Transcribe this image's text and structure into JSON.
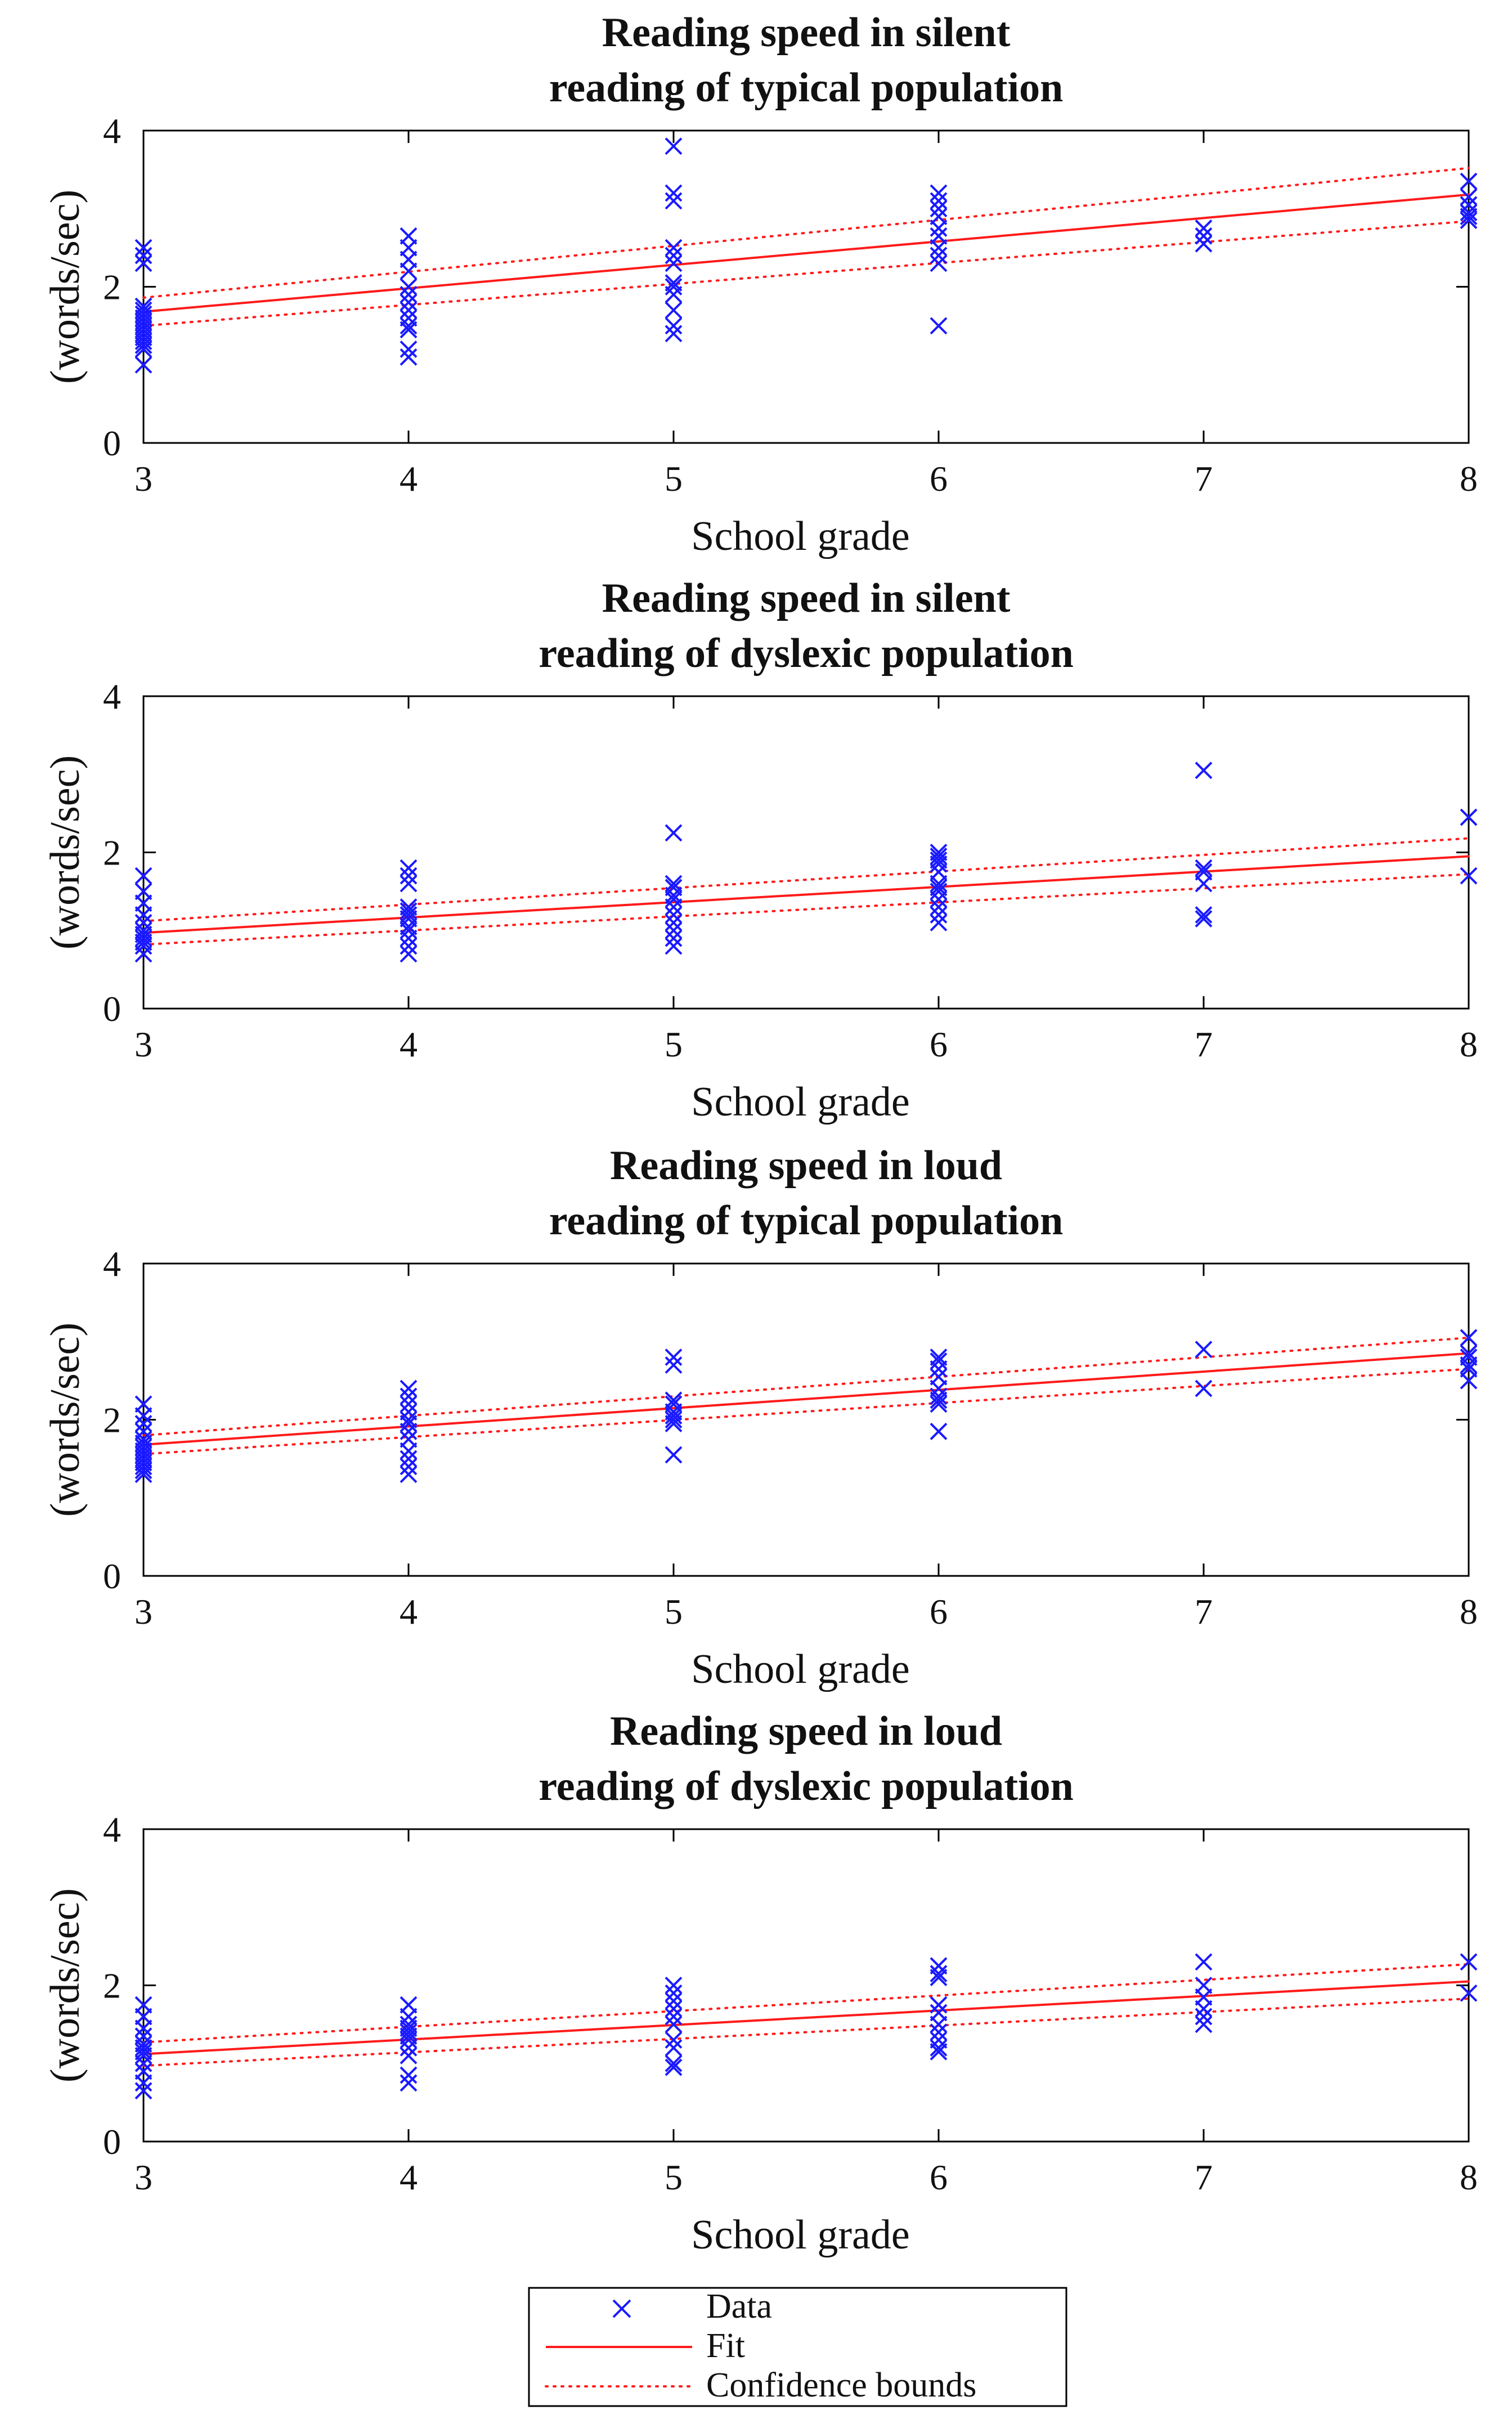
{
  "chart_data": [
    {
      "type": "scatter",
      "title_lines": [
        "Reading speed in silent",
        "reading of typical population"
      ],
      "xlabel": "School grade",
      "ylabel": "(words/sec)",
      "xlim": [
        3,
        8
      ],
      "ylim": [
        0,
        4
      ],
      "xticks": [
        3,
        4,
        5,
        6,
        7,
        8
      ],
      "yticks": [
        0,
        2,
        4
      ],
      "series": [
        {
          "name": "Data",
          "points": [
            [
              3,
              2.5
            ],
            [
              3,
              2.4
            ],
            [
              3,
              2.3
            ],
            [
              3,
              1.75
            ],
            [
              3,
              1.7
            ],
            [
              3,
              1.65
            ],
            [
              3,
              1.6
            ],
            [
              3,
              1.55
            ],
            [
              3,
              1.5
            ],
            [
              3,
              1.45
            ],
            [
              3,
              1.4
            ],
            [
              3,
              1.35
            ],
            [
              3,
              1.3
            ],
            [
              3,
              1.25
            ],
            [
              3,
              1.2
            ],
            [
              3,
              1.0
            ],
            [
              4,
              2.65
            ],
            [
              4,
              2.5
            ],
            [
              4,
              2.35
            ],
            [
              4,
              2.2
            ],
            [
              4,
              2.0
            ],
            [
              4,
              1.9
            ],
            [
              4,
              1.8
            ],
            [
              4,
              1.7
            ],
            [
              4,
              1.6
            ],
            [
              4,
              1.5
            ],
            [
              4,
              1.45
            ],
            [
              4,
              1.2
            ],
            [
              4,
              1.1
            ],
            [
              5,
              3.8
            ],
            [
              5,
              3.2
            ],
            [
              5,
              3.1
            ],
            [
              5,
              2.5
            ],
            [
              5,
              2.4
            ],
            [
              5,
              2.3
            ],
            [
              5,
              2.05
            ],
            [
              5,
              2.0
            ],
            [
              5,
              1.9
            ],
            [
              5,
              1.7
            ],
            [
              5,
              1.5
            ],
            [
              5,
              1.4
            ],
            [
              6,
              3.2
            ],
            [
              6,
              3.1
            ],
            [
              6,
              3.0
            ],
            [
              6,
              2.9
            ],
            [
              6,
              2.75
            ],
            [
              6,
              2.65
            ],
            [
              6,
              2.5
            ],
            [
              6,
              2.4
            ],
            [
              6,
              2.3
            ],
            [
              6,
              1.5
            ],
            [
              7,
              2.75
            ],
            [
              7,
              2.65
            ],
            [
              7,
              2.55
            ],
            [
              8,
              3.35
            ],
            [
              8,
              3.15
            ],
            [
              8,
              3.05
            ],
            [
              8,
              2.95
            ],
            [
              8,
              2.9
            ],
            [
              8,
              2.85
            ]
          ]
        },
        {
          "name": "Fit",
          "line": [
            [
              3,
              1.68
            ],
            [
              8,
              3.18
            ]
          ]
        },
        {
          "name": "Confidence bounds upper",
          "line": [
            [
              3,
              1.86
            ],
            [
              8,
              3.52
            ]
          ]
        },
        {
          "name": "Confidence bounds lower",
          "line": [
            [
              3,
              1.5
            ],
            [
              8,
              2.84
            ]
          ]
        }
      ]
    },
    {
      "type": "scatter",
      "title_lines": [
        "Reading speed in silent",
        "reading of dyslexic population"
      ],
      "xlabel": "School grade",
      "ylabel": "(words/sec)",
      "xlim": [
        3,
        8
      ],
      "ylim": [
        0,
        4
      ],
      "xticks": [
        3,
        4,
        5,
        6,
        7,
        8
      ],
      "yticks": [
        0,
        2,
        4
      ],
      "series": [
        {
          "name": "Data",
          "points": [
            [
              3,
              1.7
            ],
            [
              3,
              1.5
            ],
            [
              3,
              1.35
            ],
            [
              3,
              1.2
            ],
            [
              3,
              1.1
            ],
            [
              3,
              1.0
            ],
            [
              3,
              0.95
            ],
            [
              3,
              0.9
            ],
            [
              3,
              0.85
            ],
            [
              3,
              0.8
            ],
            [
              3,
              0.7
            ],
            [
              4,
              1.8
            ],
            [
              4,
              1.7
            ],
            [
              4,
              1.6
            ],
            [
              4,
              1.3
            ],
            [
              4,
              1.25
            ],
            [
              4,
              1.2
            ],
            [
              4,
              1.15
            ],
            [
              4,
              1.05
            ],
            [
              4,
              1.0
            ],
            [
              4,
              0.9
            ],
            [
              4,
              0.8
            ],
            [
              4,
              0.7
            ],
            [
              5,
              2.25
            ],
            [
              5,
              1.6
            ],
            [
              5,
              1.55
            ],
            [
              5,
              1.45
            ],
            [
              5,
              1.4
            ],
            [
              5,
              1.3
            ],
            [
              5,
              1.2
            ],
            [
              5,
              1.1
            ],
            [
              5,
              1.0
            ],
            [
              5,
              0.9
            ],
            [
              5,
              0.8
            ],
            [
              6,
              2.0
            ],
            [
              6,
              1.95
            ],
            [
              6,
              1.9
            ],
            [
              6,
              1.85
            ],
            [
              6,
              1.75
            ],
            [
              6,
              1.6
            ],
            [
              6,
              1.55
            ],
            [
              6,
              1.5
            ],
            [
              6,
              1.4
            ],
            [
              6,
              1.3
            ],
            [
              6,
              1.2
            ],
            [
              6,
              1.1
            ],
            [
              7,
              3.05
            ],
            [
              7,
              1.8
            ],
            [
              7,
              1.75
            ],
            [
              7,
              1.6
            ],
            [
              7,
              1.2
            ],
            [
              7,
              1.15
            ],
            [
              8,
              2.45
            ],
            [
              8,
              1.7
            ]
          ]
        },
        {
          "name": "Fit",
          "line": [
            [
              3,
              0.97
            ],
            [
              8,
              1.95
            ]
          ]
        },
        {
          "name": "Confidence bounds upper",
          "line": [
            [
              3,
              1.12
            ],
            [
              8,
              2.18
            ]
          ]
        },
        {
          "name": "Confidence bounds lower",
          "line": [
            [
              3,
              0.82
            ],
            [
              8,
              1.72
            ]
          ]
        }
      ]
    },
    {
      "type": "scatter",
      "title_lines": [
        "Reading speed in loud",
        "reading of typical population"
      ],
      "xlabel": "School grade",
      "ylabel": "(words/sec)",
      "xlim": [
        3,
        8
      ],
      "ylim": [
        0,
        4
      ],
      "xticks": [
        3,
        4,
        5,
        6,
        7,
        8
      ],
      "yticks": [
        0,
        2,
        4
      ],
      "series": [
        {
          "name": "Data",
          "points": [
            [
              3,
              2.2
            ],
            [
              3,
              2.05
            ],
            [
              3,
              1.95
            ],
            [
              3,
              1.85
            ],
            [
              3,
              1.75
            ],
            [
              3,
              1.7
            ],
            [
              3,
              1.65
            ],
            [
              3,
              1.6
            ],
            [
              3,
              1.55
            ],
            [
              3,
              1.5
            ],
            [
              3,
              1.45
            ],
            [
              3,
              1.4
            ],
            [
              3,
              1.35
            ],
            [
              3,
              1.3
            ],
            [
              4,
              2.4
            ],
            [
              4,
              2.3
            ],
            [
              4,
              2.2
            ],
            [
              4,
              2.1
            ],
            [
              4,
              2.0
            ],
            [
              4,
              1.95
            ],
            [
              4,
              1.85
            ],
            [
              4,
              1.75
            ],
            [
              4,
              1.6
            ],
            [
              4,
              1.5
            ],
            [
              4,
              1.4
            ],
            [
              4,
              1.3
            ],
            [
              5,
              2.8
            ],
            [
              5,
              2.7
            ],
            [
              5,
              2.25
            ],
            [
              5,
              2.2
            ],
            [
              5,
              2.1
            ],
            [
              5,
              2.05
            ],
            [
              5,
              2.0
            ],
            [
              5,
              1.95
            ],
            [
              5,
              1.55
            ],
            [
              6,
              2.8
            ],
            [
              6,
              2.75
            ],
            [
              6,
              2.65
            ],
            [
              6,
              2.55
            ],
            [
              6,
              2.4
            ],
            [
              6,
              2.3
            ],
            [
              6,
              2.25
            ],
            [
              6,
              2.2
            ],
            [
              6,
              1.85
            ],
            [
              7,
              2.9
            ],
            [
              7,
              2.4
            ],
            [
              8,
              3.05
            ],
            [
              8,
              2.85
            ],
            [
              8,
              2.8
            ],
            [
              8,
              2.7
            ],
            [
              8,
              2.65
            ],
            [
              8,
              2.5
            ]
          ]
        },
        {
          "name": "Fit",
          "line": [
            [
              3,
              1.68
            ],
            [
              8,
              2.85
            ]
          ]
        },
        {
          "name": "Confidence bounds upper",
          "line": [
            [
              3,
              1.8
            ],
            [
              8,
              3.05
            ]
          ]
        },
        {
          "name": "Confidence bounds lower",
          "line": [
            [
              3,
              1.56
            ],
            [
              8,
              2.65
            ]
          ]
        }
      ]
    },
    {
      "type": "scatter",
      "title_lines": [
        "Reading speed in loud",
        "reading of dyslexic population"
      ],
      "xlabel": "School grade",
      "ylabel": "(words/sec)",
      "xlim": [
        3,
        8
      ],
      "ylim": [
        0,
        4
      ],
      "xticks": [
        3,
        4,
        5,
        6,
        7,
        8
      ],
      "yticks": [
        0,
        2,
        4
      ],
      "series": [
        {
          "name": "Data",
          "points": [
            [
              3,
              1.75
            ],
            [
              3,
              1.6
            ],
            [
              3,
              1.45
            ],
            [
              3,
              1.35
            ],
            [
              3,
              1.25
            ],
            [
              3,
              1.2
            ],
            [
              3,
              1.15
            ],
            [
              3,
              1.1
            ],
            [
              3,
              1.0
            ],
            [
              3,
              0.9
            ],
            [
              3,
              0.75
            ],
            [
              3,
              0.65
            ],
            [
              4,
              1.75
            ],
            [
              4,
              1.6
            ],
            [
              4,
              1.5
            ],
            [
              4,
              1.45
            ],
            [
              4,
              1.4
            ],
            [
              4,
              1.35
            ],
            [
              4,
              1.3
            ],
            [
              4,
              1.2
            ],
            [
              4,
              1.1
            ],
            [
              4,
              0.85
            ],
            [
              4,
              0.75
            ],
            [
              5,
              2.0
            ],
            [
              5,
              1.9
            ],
            [
              5,
              1.8
            ],
            [
              5,
              1.7
            ],
            [
              5,
              1.6
            ],
            [
              5,
              1.5
            ],
            [
              5,
              1.3
            ],
            [
              5,
              1.2
            ],
            [
              5,
              1.0
            ],
            [
              5,
              0.95
            ],
            [
              6,
              2.25
            ],
            [
              6,
              2.15
            ],
            [
              6,
              2.1
            ],
            [
              6,
              1.75
            ],
            [
              6,
              1.65
            ],
            [
              6,
              1.5
            ],
            [
              6,
              1.4
            ],
            [
              6,
              1.3
            ],
            [
              6,
              1.2
            ],
            [
              6,
              1.15
            ],
            [
              7,
              2.3
            ],
            [
              7,
              2.0
            ],
            [
              7,
              1.85
            ],
            [
              7,
              1.7
            ],
            [
              7,
              1.6
            ],
            [
              7,
              1.5
            ],
            [
              8,
              2.3
            ],
            [
              8,
              1.9
            ]
          ]
        },
        {
          "name": "Fit",
          "line": [
            [
              3,
              1.12
            ],
            [
              8,
              2.05
            ]
          ]
        },
        {
          "name": "Confidence bounds upper",
          "line": [
            [
              3,
              1.27
            ],
            [
              8,
              2.27
            ]
          ]
        },
        {
          "name": "Confidence bounds lower",
          "line": [
            [
              3,
              0.97
            ],
            [
              8,
              1.83
            ]
          ]
        }
      ]
    }
  ],
  "legend": {
    "entries": [
      "Data",
      "Fit",
      "Confidence bounds"
    ],
    "placement": "bottom-center"
  },
  "colors": {
    "data": "#1a1aff",
    "fit": "#ff1a1a",
    "bounds": "#ff1a1a",
    "axes": "#000000"
  }
}
